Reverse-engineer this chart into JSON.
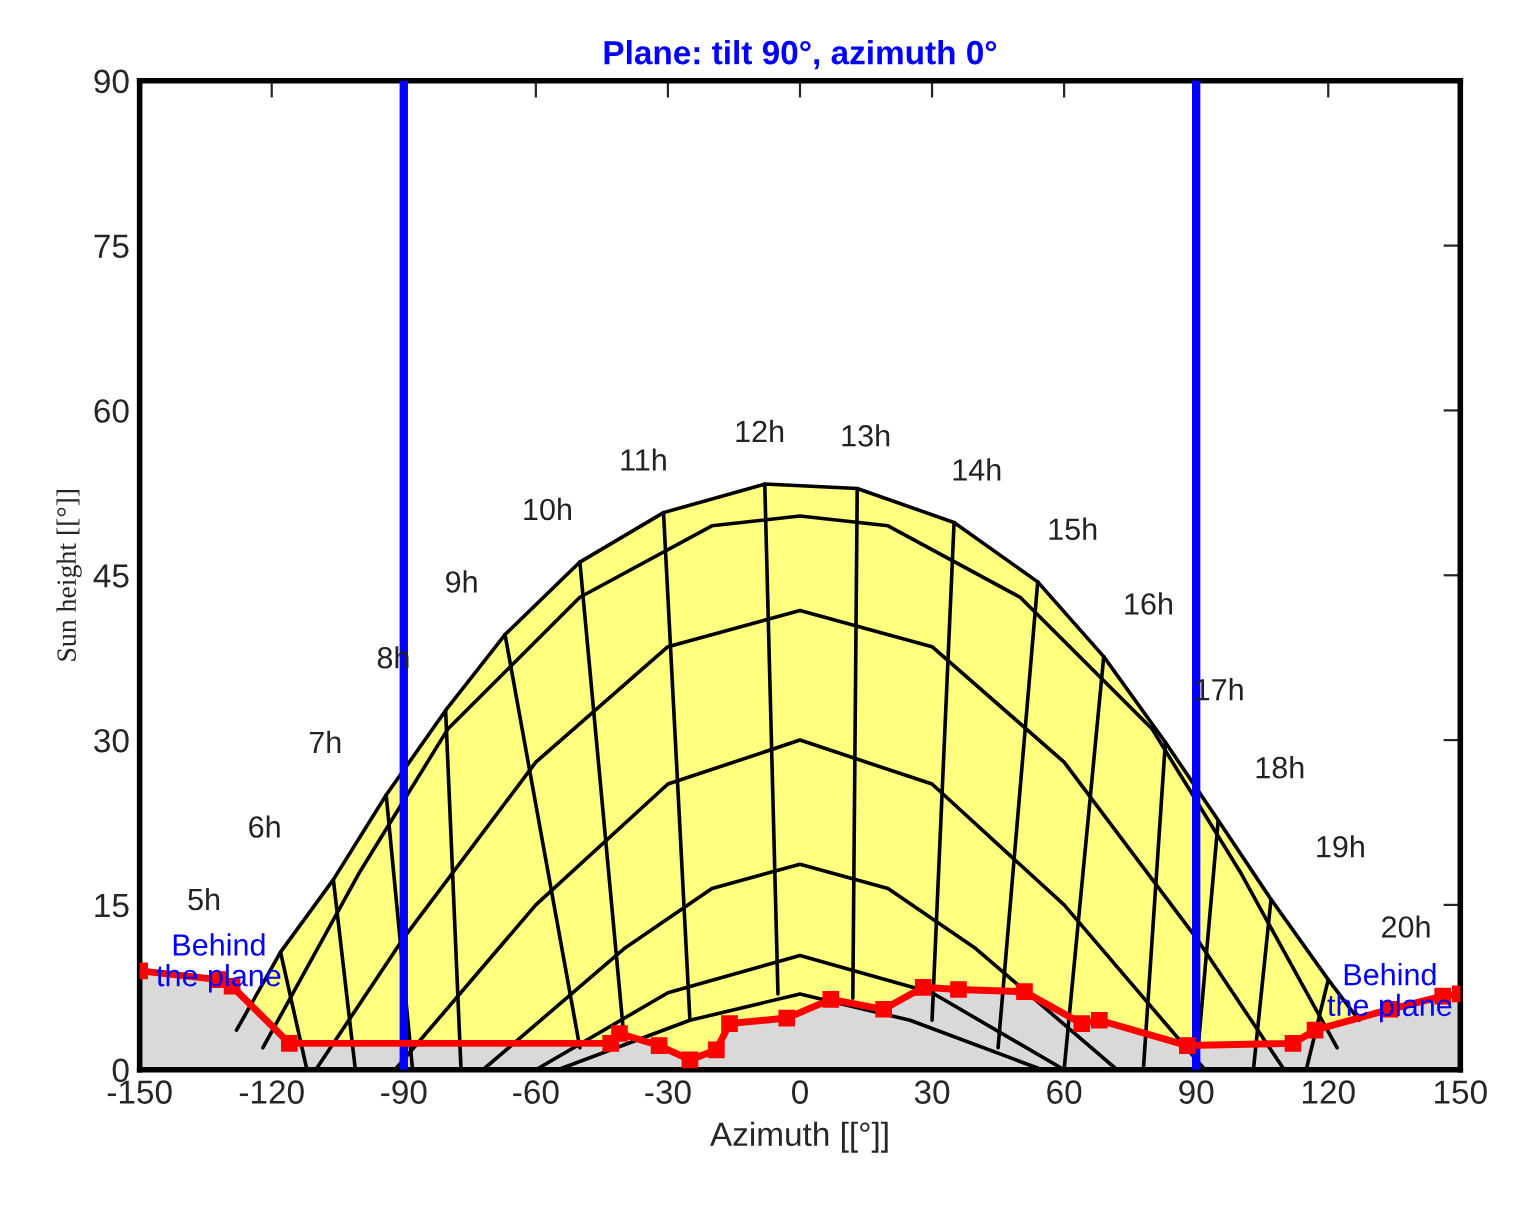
{
  "chart_data": {
    "type": "line",
    "title": "Plane: tilt 90°, azimuth 0°",
    "xlabel": "Azimuth [[°]]",
    "ylabel": "Sun height [[°]]",
    "xlim": [
      -150,
      150
    ],
    "xticks": [
      -150,
      -120,
      -90,
      -60,
      -30,
      0,
      30,
      60,
      90,
      120,
      150
    ],
    "ylim": [
      0,
      90
    ],
    "yticks": [
      0,
      15,
      30,
      45,
      60,
      75,
      90
    ],
    "legend": false,
    "ref_lines": [
      {
        "axis": "x",
        "value": -90,
        "color": "#0000ff"
      },
      {
        "axis": "x",
        "value": 90,
        "color": "#0000ff"
      }
    ],
    "series": [
      {
        "type": "area",
        "color": "#ffff80",
        "x": [
          -128,
          -118,
          -106,
          -94,
          -80.5,
          -67,
          -50,
          -31,
          -8,
          13,
          35,
          54,
          69,
          83,
          95,
          107,
          120,
          127
        ],
        "values": [
          3.6,
          10.7,
          17.3,
          25,
          32.7,
          39.6,
          46.2,
          50.7,
          53.3,
          52.9,
          49.8,
          44.4,
          37.6,
          29.8,
          22.7,
          15.5,
          8.2,
          4.5
        ]
      },
      {
        "type": "area",
        "color": "#d9d9d9",
        "marker": "square",
        "x": [
          -150,
          -132,
          -129,
          -116,
          -43,
          -41,
          -32,
          -25,
          -19,
          -16,
          -3,
          7,
          19,
          28,
          36,
          51,
          64,
          68,
          88,
          112,
          117,
          134,
          146,
          150
        ],
        "values": [
          9,
          8.2,
          7.6,
          2.4,
          2.4,
          3.3,
          2.2,
          0.9,
          1.8,
          4.2,
          4.7,
          6.4,
          5.5,
          7.5,
          7.3,
          7.1,
          4.2,
          4.5,
          2.2,
          2.4,
          3.6,
          5.5,
          6.7,
          6.9
        ]
      },
      {
        "color": "#000000",
        "x": [
          -122,
          -100,
          -80,
          -50,
          -20,
          0,
          20,
          50,
          80,
          100,
          122
        ],
        "values": [
          2,
          18,
          31,
          43,
          49.5,
          50.4,
          49.5,
          43,
          31,
          18,
          2
        ]
      },
      {
        "color": "#000000",
        "x": [
          -110,
          -90,
          -60,
          -30,
          0,
          30,
          60,
          90,
          110
        ],
        "values": [
          0,
          12,
          28,
          38.5,
          41.8,
          38.5,
          28,
          12,
          0
        ]
      },
      {
        "color": "#000000",
        "x": [
          -92,
          -60,
          -30,
          0,
          30,
          60,
          92
        ],
        "values": [
          0,
          15,
          26,
          30,
          26,
          15,
          0
        ]
      },
      {
        "color": "#000000",
        "x": [
          -72,
          -40,
          -20,
          0,
          20,
          40,
          72
        ],
        "values": [
          0,
          11,
          16.5,
          18.7,
          16.5,
          11,
          0
        ]
      },
      {
        "color": "#000000",
        "x": [
          -60,
          -30,
          0,
          30,
          60
        ],
        "values": [
          0,
          7,
          10.4,
          7,
          0
        ]
      },
      {
        "color": "#000000",
        "x": [
          -55,
          -25,
          0,
          25,
          55
        ],
        "values": [
          0,
          4.5,
          6.9,
          4.5,
          0
        ]
      },
      {
        "color": "#000000",
        "x": [
          -118,
          -112
        ],
        "values": [
          10.7,
          0
        ]
      },
      {
        "color": "#000000",
        "x": [
          -106,
          -101
        ],
        "values": [
          17.3,
          0
        ]
      },
      {
        "color": "#000000",
        "x": [
          -94,
          -88
        ],
        "values": [
          25,
          0
        ]
      },
      {
        "color": "#000000",
        "x": [
          -80.5,
          -77
        ],
        "values": [
          32.7,
          0
        ]
      },
      {
        "color": "#000000",
        "x": [
          -67,
          -50
        ],
        "values": [
          39.6,
          2
        ]
      },
      {
        "color": "#000000",
        "x": [
          -50,
          -40
        ],
        "values": [
          46.2,
          3
        ]
      },
      {
        "color": "#000000",
        "x": [
          -31,
          -25
        ],
        "values": [
          50.7,
          4.5
        ]
      },
      {
        "color": "#000000",
        "x": [
          -8,
          -5
        ],
        "values": [
          53.3,
          6.9
        ]
      },
      {
        "color": "#000000",
        "x": [
          13,
          12
        ],
        "values": [
          52.9,
          6.5
        ]
      },
      {
        "color": "#000000",
        "x": [
          35,
          30
        ],
        "values": [
          49.8,
          4.5
        ]
      },
      {
        "color": "#000000",
        "x": [
          54,
          45
        ],
        "values": [
          44.4,
          2
        ]
      },
      {
        "color": "#000000",
        "x": [
          69,
          60
        ],
        "values": [
          37.6,
          0
        ]
      },
      {
        "color": "#000000",
        "x": [
          83,
          78
        ],
        "values": [
          29.8,
          0
        ]
      },
      {
        "color": "#000000",
        "x": [
          95,
          90
        ],
        "values": [
          22.7,
          0
        ]
      },
      {
        "color": "#000000",
        "x": [
          107,
          103
        ],
        "values": [
          15.5,
          0
        ]
      },
      {
        "color": "#000000",
        "x": [
          120,
          115
        ],
        "values": [
          8.2,
          0
        ]
      }
    ],
    "annotations": [
      {
        "text": "5h",
        "x": -118,
        "y": 10.7
      },
      {
        "text": "6h",
        "x": -106,
        "y": 17.3
      },
      {
        "text": "7h",
        "x": -94,
        "y": 25
      },
      {
        "text": "8h",
        "x": -80.5,
        "y": 32.7
      },
      {
        "text": "9h",
        "x": -67,
        "y": 39.6
      },
      {
        "text": "10h",
        "x": -50,
        "y": 46.2
      },
      {
        "text": "11h",
        "x": -31,
        "y": 50.7
      },
      {
        "text": "12h",
        "x": -8,
        "y": 53.3
      },
      {
        "text": "13h",
        "x": 13,
        "y": 52.9
      },
      {
        "text": "14h",
        "x": 35,
        "y": 49.8
      },
      {
        "text": "15h",
        "x": 54,
        "y": 44.4
      },
      {
        "text": "16h",
        "x": 69,
        "y": 37.6
      },
      {
        "text": "17h",
        "x": 83,
        "y": 29.8
      },
      {
        "text": "18h",
        "x": 95,
        "y": 22.7
      },
      {
        "text": "19h",
        "x": 107,
        "y": 15.5
      },
      {
        "text": "20h",
        "x": 120,
        "y": 8.2
      },
      {
        "text": "Behind\nthe plane",
        "x": -132,
        "y": 8.2
      },
      {
        "text": "Behind\nthe plane",
        "x": 134,
        "y": 5.5
      }
    ]
  }
}
